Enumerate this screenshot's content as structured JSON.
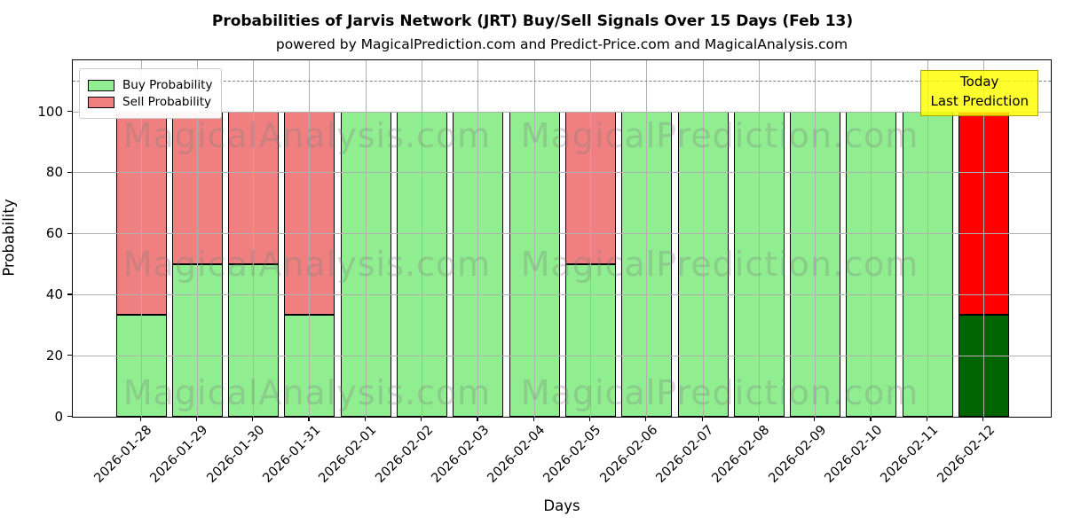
{
  "title": "Probabilities of Jarvis Network (JRT) Buy/Sell Signals Over 15 Days (Feb 13)",
  "subtitle": "powered by MagicalPrediction.com and Predict-Price.com and MagicalAnalysis.com",
  "axes": {
    "xlabel": "Days",
    "ylabel": "Probability",
    "yticks": [
      0,
      20,
      40,
      60,
      80,
      100
    ]
  },
  "legend": {
    "items": [
      {
        "label": "Buy Probability",
        "color": "#90ee90"
      },
      {
        "label": "Sell Probability",
        "color": "#f08080"
      }
    ]
  },
  "annotation": {
    "line1": "Today",
    "line2": "Last Prediction",
    "bg_color": "#ffff00",
    "border_color": "#b0a400"
  },
  "watermarks": {
    "left": "MagicalAnalysis.com",
    "right": "MagicalPrediction.com",
    "color": "rgba(125,125,125,0.3)"
  },
  "colors": {
    "buy": "#90ee90",
    "sell": "#f08080",
    "today_buy": "#006400",
    "today_sell": "#ff0000",
    "grid": "#b0b0b0",
    "dashed_line": "#7f7f7f"
  },
  "chart_data": {
    "type": "bar",
    "stacked": true,
    "title": "Probabilities of Jarvis Network (JRT) Buy/Sell Signals Over 15 Days (Feb 13)",
    "xlabel": "Days",
    "ylabel": "Probability",
    "ylim": [
      0,
      116.6
    ],
    "grid": true,
    "legend_position": "upper left",
    "dashed_threshold_y": 110,
    "categories": [
      "2026-01-28",
      "2026-01-29",
      "2026-01-30",
      "2026-01-31",
      "2026-02-01",
      "2026-02-02",
      "2026-02-03",
      "2026-02-04",
      "2026-02-05",
      "2026-02-06",
      "2026-02-07",
      "2026-02-08",
      "2026-02-09",
      "2026-02-10",
      "2026-02-11",
      "2026-02-12"
    ],
    "series": [
      {
        "name": "Buy Probability",
        "values": [
          33.33,
          50,
          50,
          33.33,
          100,
          100,
          100,
          100,
          50,
          100,
          100,
          100,
          100,
          100,
          100,
          33.33
        ]
      },
      {
        "name": "Sell Probability",
        "values": [
          66.67,
          50,
          50,
          66.67,
          0,
          0,
          0,
          0,
          50,
          0,
          0,
          0,
          0,
          0,
          0,
          66.67
        ]
      }
    ],
    "today_index": 15
  }
}
